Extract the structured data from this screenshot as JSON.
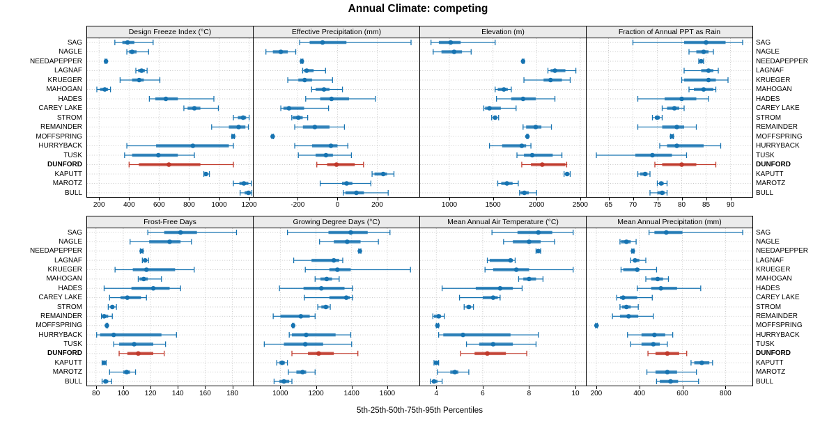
{
  "title": "Annual Climate: competing",
  "caption": "5th-25th-50th-75th-95th Percentiles",
  "colors": {
    "series": "#1673b1",
    "highlight": "#c0392b",
    "strip_bg": "#ebebeb",
    "grid": "#c9c9c9",
    "border": "#000000",
    "background": "#ffffff"
  },
  "chart_data": {
    "type": "dotplot-percentiles",
    "percentile_labels": [
      "5th",
      "25th",
      "50th",
      "75th",
      "95th"
    ],
    "legend_position": "none",
    "grid": true,
    "highlight": "DUNFORD",
    "rows": [
      "SAG",
      "NAGLE",
      "NEEDAPEPPER",
      "LAGNAF",
      "KRUEGER",
      "MAHOGAN",
      "HADES",
      "CAREY LAKE",
      "STROM",
      "REMAINDER",
      "MOFFSPRING",
      "HURRYBACK",
      "TUSK",
      "DUNFORD",
      "KAPUTT",
      "MAROTZ",
      "BULL"
    ],
    "panels": [
      {
        "title": "Design Freeze Index (°C)",
        "band": "top",
        "ticks": [
          200,
          400,
          600,
          800,
          1000,
          1200
        ],
        "domain": [
          120,
          1225
        ],
        "values": [
          [
            305,
            355,
            390,
            435,
            560
          ],
          [
            385,
            400,
            420,
            450,
            530
          ],
          [
            240,
            243,
            246,
            249,
            252
          ],
          [
            445,
            460,
            483,
            505,
            520
          ],
          [
            340,
            420,
            467,
            498,
            605
          ],
          [
            185,
            207,
            238,
            260,
            276
          ],
          [
            535,
            575,
            645,
            725,
            965
          ],
          [
            765,
            790,
            835,
            875,
            995
          ],
          [
            1095,
            1125,
            1160,
            1180,
            1200
          ],
          [
            950,
            1065,
            1130,
            1175,
            1195
          ],
          [
            1085,
            1090,
            1094,
            1098,
            1102
          ],
          [
            385,
            580,
            825,
            1065,
            1095
          ],
          [
            370,
            420,
            595,
            725,
            835
          ],
          [
            400,
            465,
            665,
            875,
            1095
          ],
          [
            898,
            905,
            912,
            920,
            935
          ],
          [
            1095,
            1135,
            1165,
            1195,
            1215
          ],
          [
            1140,
            1170,
            1195,
            1210,
            1218
          ]
        ]
      },
      {
        "title": "Effective Precipitation (mm)",
        "band": "top",
        "ticks": [
          -200,
          0,
          200
        ],
        "domain": [
          -422,
          412
        ],
        "values": [
          [
            -190,
            -140,
            -75,
            45,
            370
          ],
          [
            -360,
            -325,
            -285,
            -250,
            -210
          ],
          [
            -184,
            -181,
            -179,
            -177,
            -174
          ],
          [
            -175,
            -168,
            -155,
            -120,
            -60
          ],
          [
            -250,
            -197,
            -165,
            -128,
            -25
          ],
          [
            -130,
            -110,
            -68,
            -40,
            25
          ],
          [
            -160,
            -87,
            -30,
            58,
            190
          ],
          [
            -285,
            -272,
            -244,
            -168,
            -45
          ],
          [
            -230,
            -225,
            -197,
            -175,
            -150
          ],
          [
            -215,
            -174,
            -114,
            -40,
            35
          ],
          [
            -330,
            -328,
            -326,
            -324,
            -322
          ],
          [
            -215,
            -128,
            -33,
            0,
            52
          ],
          [
            -197,
            -110,
            -58,
            -23,
            70
          ],
          [
            -104,
            -52,
            -5,
            87,
            131
          ],
          [
            174,
            186,
            230,
            249,
            284
          ],
          [
            -87,
            23,
            46,
            75,
            168
          ],
          [
            29,
            40,
            95,
            133,
            255
          ]
        ]
      },
      {
        "title": "Elevation (m)",
        "band": "top",
        "ticks": [
          1000,
          1500,
          2000,
          2500
        ],
        "domain": [
          665,
          2565
        ],
        "values": [
          [
            790,
            880,
            1015,
            1130,
            1525
          ],
          [
            815,
            910,
            1055,
            1145,
            1250
          ],
          [
            1835,
            1840,
            1845,
            1850,
            1855
          ],
          [
            2130,
            2160,
            2210,
            2330,
            2450
          ],
          [
            1855,
            2080,
            2160,
            2290,
            2385
          ],
          [
            1525,
            1555,
            1625,
            1670,
            1710
          ],
          [
            1540,
            1710,
            1845,
            1990,
            2210
          ],
          [
            1395,
            1410,
            1460,
            1590,
            1765
          ],
          [
            1485,
            1505,
            1525,
            1545,
            1565
          ],
          [
            1845,
            1880,
            1990,
            2055,
            2170
          ],
          [
            1888,
            1892,
            1895,
            1898,
            1902
          ],
          [
            1460,
            1605,
            1830,
            1880,
            1935
          ],
          [
            1775,
            1855,
            1950,
            2185,
            2290
          ],
          [
            1830,
            1935,
            2065,
            2330,
            2345
          ],
          [
            2315,
            2330,
            2350,
            2365,
            2385
          ],
          [
            1555,
            1595,
            1660,
            1725,
            1790
          ],
          [
            1805,
            1815,
            1860,
            1910,
            2000
          ]
        ]
      },
      {
        "title": "Fraction of Annual PPT as Rain",
        "band": "top",
        "ticks": [
          65,
          70,
          75,
          80,
          85,
          90
        ],
        "domain": [
          60.5,
          94.5
        ],
        "values": [
          [
            70,
            80.5,
            85,
            89,
            92.5
          ],
          [
            81.5,
            83,
            84.5,
            85.5,
            86.5
          ],
          [
            83.5,
            83.8,
            84,
            84.2,
            84.5
          ],
          [
            80.5,
            84,
            85.5,
            86.5,
            87.5
          ],
          [
            80,
            80.5,
            85.5,
            87,
            89.5
          ],
          [
            81.5,
            82.5,
            84.5,
            86.5,
            87
          ],
          [
            71,
            76.5,
            80,
            83,
            85.5
          ],
          [
            76,
            77,
            78.5,
            79.5,
            80.5
          ],
          [
            74,
            74.5,
            75,
            75.5,
            76
          ],
          [
            71,
            76,
            79,
            80.5,
            83
          ],
          [
            77.7,
            77.9,
            78,
            78.1,
            78.3
          ],
          [
            75.5,
            77,
            79,
            84.5,
            88
          ],
          [
            62.5,
            70.5,
            74,
            78,
            81
          ],
          [
            74.5,
            76,
            80,
            83,
            87
          ],
          [
            71,
            71.5,
            72.5,
            73,
            73.5
          ],
          [
            75,
            75.4,
            75.8,
            76.3,
            77
          ],
          [
            73.5,
            75,
            76,
            76.5,
            77
          ]
        ]
      },
      {
        "title": "Frost-Free Days",
        "band": "bottom",
        "ticks": [
          80,
          100,
          120,
          140,
          160,
          180
        ],
        "domain": [
          73.5,
          195
        ],
        "values": [
          [
            118,
            130,
            142,
            154,
            183
          ],
          [
            105,
            119,
            134,
            142,
            150
          ],
          [
            112.5,
            113,
            113.5,
            114,
            114.5
          ],
          [
            114,
            115,
            116,
            117,
            118.5
          ],
          [
            94,
            107,
            117,
            138,
            152
          ],
          [
            111,
            112,
            115,
            118,
            128
          ],
          [
            86,
            106,
            122,
            134,
            142
          ],
          [
            90,
            98,
            103,
            113,
            117
          ],
          [
            89,
            91,
            92,
            93,
            95
          ],
          [
            84,
            85,
            86,
            89,
            92
          ],
          [
            87.5,
            87.8,
            88,
            88.3,
            88.6
          ],
          [
            80.5,
            83,
            93,
            128,
            139
          ],
          [
            93,
            97,
            108,
            122,
            131
          ],
          [
            97,
            103,
            111,
            122,
            130
          ],
          [
            84.5,
            85,
            86,
            87,
            87.5
          ],
          [
            90,
            100,
            102.5,
            105,
            109
          ],
          [
            84.5,
            86,
            87,
            89,
            91.5
          ]
        ]
      },
      {
        "title": "Growing Degree Days (°C)",
        "band": "bottom",
        "ticks": [
          1000,
          1200,
          1400,
          1600
        ],
        "domain": [
          850,
          1780
        ],
        "values": [
          [
            1040,
            1270,
            1395,
            1490,
            1615
          ],
          [
            1220,
            1300,
            1375,
            1450,
            1550
          ],
          [
            1440,
            1443,
            1446,
            1449,
            1452
          ],
          [
            1075,
            1175,
            1300,
            1330,
            1350
          ],
          [
            1140,
            1275,
            1320,
            1395,
            1730
          ],
          [
            1195,
            1225,
            1260,
            1290,
            1330
          ],
          [
            995,
            1130,
            1230,
            1360,
            1405
          ],
          [
            1135,
            1275,
            1370,
            1390,
            1405
          ],
          [
            1210,
            1230,
            1255,
            1270,
            1280
          ],
          [
            960,
            1000,
            1115,
            1165,
            1195
          ],
          [
            1068,
            1070,
            1072,
            1074,
            1076
          ],
          [
            1050,
            1065,
            1145,
            1310,
            1395
          ],
          [
            910,
            1020,
            1140,
            1240,
            1400
          ],
          [
            1065,
            1155,
            1215,
            1300,
            1435
          ],
          [
            980,
            995,
            1010,
            1025,
            1040
          ],
          [
            1045,
            1090,
            1125,
            1145,
            1195
          ],
          [
            965,
            995,
            1020,
            1050,
            1065
          ]
        ]
      },
      {
        "title": "Mean Annual Air Temperature (°C)",
        "band": "bottom",
        "ticks": [
          4,
          6,
          8,
          10
        ],
        "domain": [
          3.3,
          10.45
        ],
        "values": [
          [
            6.4,
            7.5,
            8.4,
            9,
            9.9
          ],
          [
            6.9,
            7.3,
            8,
            8.5,
            9.1
          ],
          [
            8.3,
            8.35,
            8.4,
            8.45,
            8.5
          ],
          [
            6.2,
            6.3,
            7.2,
            7.3,
            7.4
          ],
          [
            6.1,
            6.45,
            7.45,
            8,
            9.9
          ],
          [
            7.55,
            7.75,
            8,
            8.3,
            8.6
          ],
          [
            4.25,
            5.7,
            6.75,
            7.3,
            7.7
          ],
          [
            5,
            6,
            6.45,
            6.65,
            6.75
          ],
          [
            5.2,
            5.3,
            5.4,
            5.5,
            5.6
          ],
          [
            3.85,
            3.9,
            4.1,
            4.2,
            4.35
          ],
          [
            4,
            4.02,
            4.05,
            4.08,
            4.1
          ],
          [
            4.1,
            4.3,
            5.15,
            7.2,
            8.4
          ],
          [
            5.3,
            5.85,
            6.45,
            7.3,
            8.3
          ],
          [
            5.05,
            5.65,
            6.2,
            7,
            7.9
          ],
          [
            3.9,
            3.95,
            4,
            4.05,
            4.1
          ],
          [
            4.05,
            4.6,
            4.8,
            4.95,
            5.4
          ],
          [
            3.75,
            3.85,
            3.9,
            4.05,
            4.25
          ]
        ]
      },
      {
        "title": "Mean Annual Precipitation (mm)",
        "band": "bottom",
        "ticks": [
          200,
          400,
          600,
          800
        ],
        "domain": [
          155,
          925
        ],
        "values": [
          [
            445,
            470,
            525,
            600,
            880
          ],
          [
            310,
            315,
            340,
            360,
            385
          ],
          [
            365,
            368,
            370,
            372,
            375
          ],
          [
            360,
            370,
            380,
            400,
            430
          ],
          [
            315,
            325,
            390,
            400,
            480
          ],
          [
            430,
            455,
            485,
            510,
            535
          ],
          [
            390,
            455,
            500,
            575,
            685
          ],
          [
            295,
            310,
            325,
            390,
            460
          ],
          [
            310,
            320,
            340,
            360,
            395
          ],
          [
            275,
            310,
            350,
            395,
            465
          ],
          [
            197,
            199,
            201,
            203,
            205
          ],
          [
            345,
            410,
            470,
            520,
            555
          ],
          [
            360,
            410,
            465,
            495,
            530
          ],
          [
            440,
            475,
            530,
            585,
            620
          ],
          [
            640,
            655,
            690,
            725,
            740
          ],
          [
            435,
            475,
            530,
            575,
            665
          ],
          [
            480,
            495,
            545,
            580,
            675
          ]
        ]
      }
    ]
  }
}
